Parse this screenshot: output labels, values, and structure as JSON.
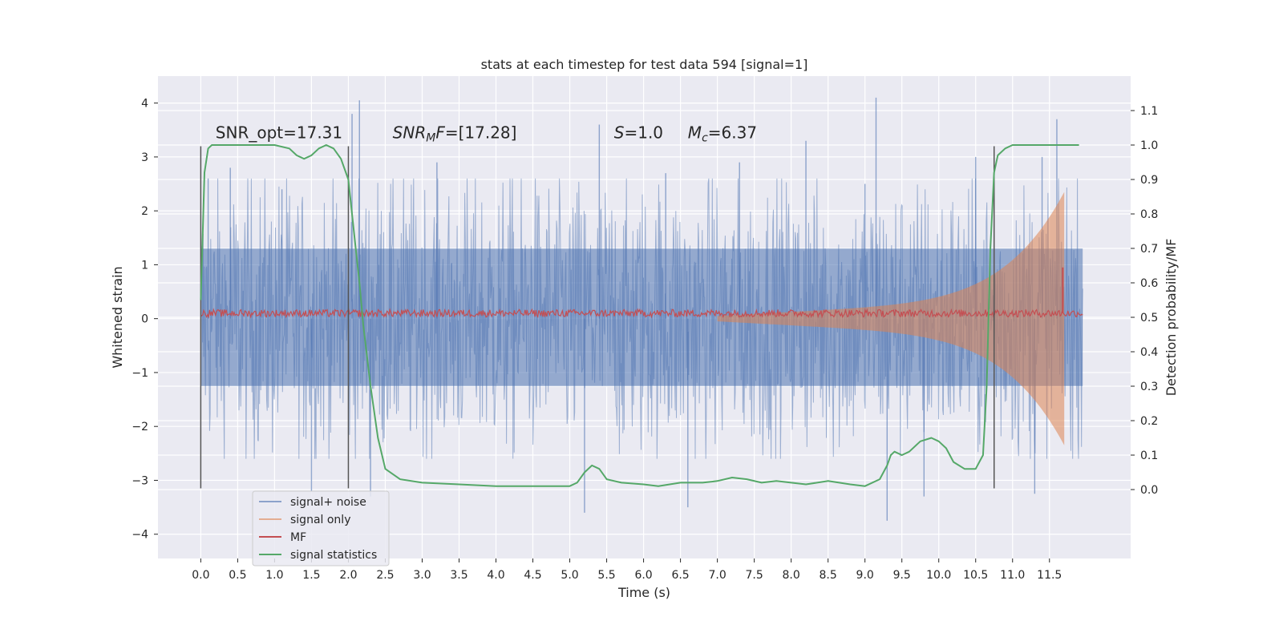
{
  "chart_data": {
    "type": "line",
    "title": "stats at each timestep for test data 594 [signal=1]",
    "xlabel": "Time (s)",
    "ylabel": "Whitened strain",
    "ylabel_right": "Detection probability/MF",
    "xlim": [
      -0.58,
      12.6
    ],
    "ylim": [
      -4.45,
      4.5
    ],
    "ylim_right": [
      -0.2,
      1.2
    ],
    "x_ticks": [
      0.0,
      0.5,
      1.0,
      1.5,
      2.0,
      2.5,
      3.0,
      3.5,
      4.0,
      4.5,
      5.0,
      5.5,
      6.0,
      6.5,
      7.0,
      7.5,
      8.0,
      8.5,
      9.0,
      9.5,
      10.0,
      10.5,
      11.0,
      11.5
    ],
    "x_tick_labels": [
      "0.0",
      "0.5",
      "1.0",
      "1.5",
      "2.0",
      "2.5",
      "3.0",
      "3.5",
      "4.0",
      "4.5",
      "5.0",
      "5.5",
      "6.0",
      "6.5",
      "7.0",
      "7.5",
      "8.0",
      "8.5",
      "9.0",
      "9.5",
      "10.0",
      "10.5",
      "11.0",
      "11.5"
    ],
    "y_ticks": [
      -4,
      -3,
      -2,
      -1,
      0,
      1,
      2,
      3,
      4
    ],
    "y_tick_labels": [
      "−4",
      "−3",
      "−2",
      "−1",
      "0",
      "1",
      "2",
      "3",
      "4"
    ],
    "y_right_ticks": [
      0.0,
      0.1,
      0.2,
      0.3,
      0.4,
      0.5,
      0.6,
      0.7,
      0.8,
      0.9,
      1.0,
      1.1
    ],
    "y_right_tick_labels": [
      "0.0",
      "0.1",
      "0.2",
      "0.3",
      "0.4",
      "0.5",
      "0.6",
      "0.7",
      "0.8",
      "0.9",
      "1.0",
      "1.1"
    ],
    "grid": true,
    "legend_position": "lower-left",
    "annotations": [
      {
        "id": "snr-opt",
        "text": "SNR_opt=17.31",
        "x": 0.2,
        "y": 3.35
      },
      {
        "id": "snr-mf",
        "text": "SNR_MF=[17.28]",
        "x": 2.6,
        "y": 3.35
      },
      {
        "id": "s-value",
        "text": "S=1.0",
        "x": 5.6,
        "y": 3.35
      },
      {
        "id": "mc-value",
        "text": "M_c=6.37",
        "x": 6.6,
        "y": 3.35
      }
    ],
    "vertical_lines": [
      {
        "x": 0.0,
        "y_range": [
          -3.15,
          3.2
        ]
      },
      {
        "x": 2.0,
        "y_range": [
          -3.15,
          3.2
        ]
      },
      {
        "x": 10.75,
        "y_range": [
          -3.15,
          3.2
        ]
      }
    ],
    "series": [
      {
        "name": "signal+ noise",
        "color": "#4c72b0",
        "axis": "left",
        "band": {
          "x_range": [
            0.0,
            11.95
          ],
          "y_range": [
            -1.25,
            1.3
          ]
        },
        "noise_envelope": [
          -2.6,
          2.6
        ],
        "spikes": [
          [
            0.1,
            2.6
          ],
          [
            0.4,
            2.8
          ],
          [
            1.1,
            2.4
          ],
          [
            1.5,
            -3.2
          ],
          [
            2.05,
            3.8
          ],
          [
            2.15,
            4.05
          ],
          [
            2.3,
            -3.3
          ],
          [
            3.2,
            2.9
          ],
          [
            5.4,
            3.6
          ],
          [
            5.2,
            -3.6
          ],
          [
            6.3,
            2.7
          ],
          [
            6.6,
            -3.5
          ],
          [
            7.3,
            2.9
          ],
          [
            8.2,
            3.3
          ],
          [
            9.0,
            2.5
          ],
          [
            9.15,
            4.1
          ],
          [
            9.3,
            -3.75
          ],
          [
            9.8,
            -3.3
          ],
          [
            11.6,
            3.7
          ],
          [
            11.3,
            -3.25
          ],
          [
            11.4,
            3.0
          ],
          [
            10.5,
            3.0
          ]
        ]
      },
      {
        "name": "signal only",
        "color": "#dd8452",
        "axis": "left",
        "chirp_start": 7.0,
        "chirp_end": 11.7,
        "amplitude_start": 0.05,
        "amplitude_end": 2.0
      },
      {
        "name": "MF",
        "color": "#c44e52",
        "axis": "left",
        "baseline": 0.1,
        "jitter": 0.1,
        "peak": {
          "x": 11.68,
          "y": 0.95
        }
      },
      {
        "name": "signal statistics",
        "color": "#55a868",
        "axis": "right",
        "x": [
          0.0,
          0.05,
          0.1,
          0.15,
          0.2,
          0.5,
          1.0,
          1.2,
          1.3,
          1.4,
          1.5,
          1.6,
          1.7,
          1.8,
          1.9,
          2.0,
          2.05,
          2.1,
          2.15,
          2.2,
          2.3,
          2.4,
          2.5,
          2.7,
          3.0,
          3.5,
          4.0,
          4.5,
          5.0,
          5.1,
          5.2,
          5.3,
          5.4,
          5.5,
          5.7,
          6.0,
          6.2,
          6.5,
          6.8,
          7.0,
          7.2,
          7.4,
          7.6,
          7.8,
          8.0,
          8.2,
          8.5,
          8.8,
          9.0,
          9.2,
          9.3,
          9.35,
          9.4,
          9.5,
          9.6,
          9.75,
          9.9,
          10.0,
          10.1,
          10.2,
          10.35,
          10.5,
          10.6,
          10.65,
          10.7,
          10.75,
          10.8,
          10.9,
          11.0,
          11.2,
          11.5,
          11.9
        ],
        "y": [
          0.55,
          0.92,
          0.99,
          1.0,
          1.0,
          1.0,
          1.0,
          0.99,
          0.97,
          0.96,
          0.97,
          0.99,
          1.0,
          0.99,
          0.96,
          0.9,
          0.8,
          0.7,
          0.6,
          0.48,
          0.3,
          0.15,
          0.06,
          0.03,
          0.02,
          0.015,
          0.01,
          0.01,
          0.01,
          0.02,
          0.05,
          0.07,
          0.06,
          0.03,
          0.02,
          0.015,
          0.01,
          0.02,
          0.02,
          0.025,
          0.035,
          0.03,
          0.02,
          0.025,
          0.02,
          0.015,
          0.025,
          0.015,
          0.01,
          0.03,
          0.07,
          0.1,
          0.11,
          0.1,
          0.11,
          0.14,
          0.15,
          0.14,
          0.12,
          0.08,
          0.06,
          0.06,
          0.1,
          0.3,
          0.7,
          0.92,
          0.97,
          0.99,
          1.0,
          1.0,
          1.0,
          1.0
        ]
      }
    ]
  }
}
